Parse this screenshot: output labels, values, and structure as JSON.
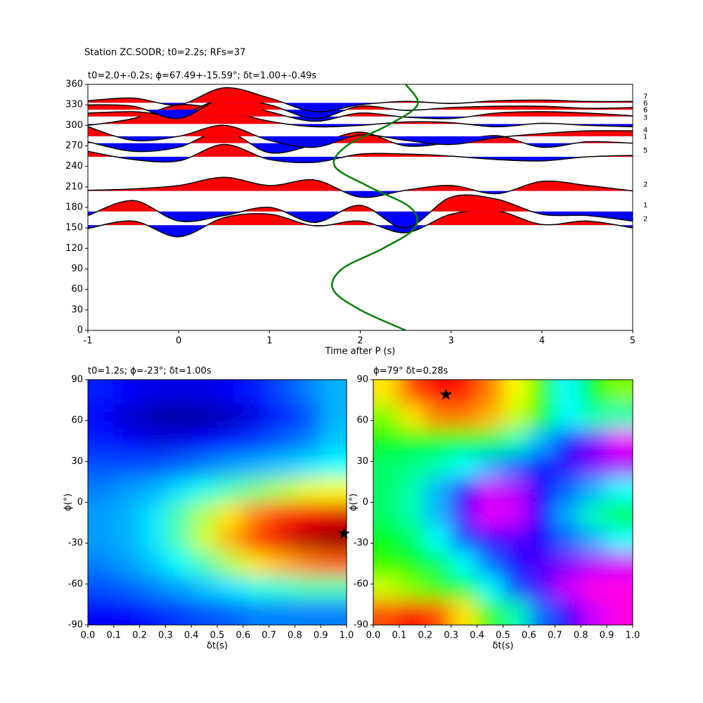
{
  "title": "Station ZC.SODR; t0=2.2s; RFs=37",
  "chart_data": [
    {
      "type": "wiggle",
      "title": "t0=2.0+-0.2s; ϕ=67.49+-15.59°; δt=1.00+-0.49s",
      "xlabel": "Time after P (s)",
      "xlim": [
        -1,
        5
      ],
      "ylim": [
        0,
        360
      ],
      "xticks": [
        -1,
        0,
        1,
        2,
        3,
        4,
        5
      ],
      "yticks": [
        0,
        30,
        60,
        90,
        120,
        150,
        180,
        210,
        240,
        270,
        300,
        330,
        360
      ],
      "positive_color": "#ff0000",
      "negative_color": "#0000ff",
      "t": [
        -1,
        -0.5,
        0,
        0.5,
        1,
        1.5,
        2,
        2.5,
        3,
        3.5,
        4,
        4.5,
        5
      ],
      "traces": [
        {
          "baseline": 154,
          "label": 2,
          "values": [
            -5,
            6,
            -17,
            11,
            16,
            -1,
            6,
            -11,
            16,
            21,
            1,
            6,
            -4
          ]
        },
        {
          "baseline": 174,
          "label": 1,
          "values": [
            -6,
            16,
            -14,
            -6,
            6,
            -16,
            9,
            -24,
            21,
            18,
            -4,
            -6,
            -14
          ]
        },
        {
          "baseline": 204,
          "label": 2,
          "values": [
            1,
            3,
            8,
            20,
            8,
            16,
            -9,
            1,
            8,
            -4,
            14,
            8,
            0
          ]
        },
        {
          "baseline": 254,
          "label": 5,
          "values": [
            8,
            -4,
            -6,
            18,
            -4,
            -8,
            4,
            4,
            1,
            -4,
            -6,
            0,
            2
          ]
        },
        {
          "baseline": 274,
          "label": 1,
          "values": [
            2,
            -12,
            -6,
            18,
            -14,
            -2,
            16,
            -4,
            1,
            11,
            -6,
            2,
            0
          ]
        },
        {
          "baseline": 284,
          "label": 4,
          "values": [
            14,
            -6,
            0,
            16,
            -6,
            -16,
            2,
            -6,
            -12,
            -2,
            4,
            8,
            8
          ]
        },
        {
          "baseline": 302,
          "label": 3,
          "values": [
            -2,
            8,
            28,
            20,
            4,
            -4,
            -2,
            3,
            2,
            -4,
            1,
            -2,
            -4
          ]
        },
        {
          "baseline": 313,
          "label": 6,
          "values": [
            5,
            7,
            3,
            25,
            7,
            -7,
            5,
            -1,
            -3,
            5,
            7,
            5,
            1
          ]
        },
        {
          "baseline": 323,
          "label": 6,
          "values": [
            7,
            5,
            -13,
            17,
            7,
            -13,
            5,
            -1,
            3,
            5,
            5,
            2,
            3
          ]
        },
        {
          "baseline": 333,
          "label": 7,
          "values": [
            3,
            7,
            -3,
            22,
            7,
            -13,
            -3,
            2,
            -1,
            3,
            4,
            2,
            2
          ]
        }
      ],
      "curve": {
        "color": "#008000",
        "baz": [
          0,
          30,
          60,
          90,
          120,
          150,
          180,
          210,
          240,
          270,
          300,
          330,
          360
        ],
        "time": [
          2.5,
          2.0,
          1.7,
          1.8,
          2.25,
          2.6,
          2.55,
          2.1,
          1.72,
          1.85,
          2.3,
          2.63,
          2.5
        ]
      }
    },
    {
      "type": "heatmap",
      "colormap": "jet",
      "title": "t0=1.2s; ϕ=-23°; δt=1.00s",
      "xlabel": "δt(s)",
      "ylabel": "ϕ(°)",
      "xlim": [
        0,
        1
      ],
      "ylim": [
        -90,
        90
      ],
      "xticks": [
        {
          "value": 0,
          "label": "0.0"
        },
        0.1,
        0.2,
        0.3,
        0.4,
        0.5,
        0.6,
        0.7,
        0.8,
        0.9,
        {
          "value": 1,
          "label": "1.0"
        }
      ],
      "yticks": [
        -90,
        -60,
        -30,
        0,
        30,
        60,
        90
      ],
      "dt": [
        0.05,
        0.15,
        0.25,
        0.35,
        0.45,
        0.55,
        0.65,
        0.75,
        0.85,
        0.95
      ],
      "phi": [
        81,
        63,
        45,
        27,
        9,
        -9,
        -27,
        -45,
        -63,
        -81
      ],
      "values": [
        [
          0.15,
          0.12,
          0.1,
          0.1,
          0.1,
          0.12,
          0.15,
          0.2,
          0.25,
          0.3
        ],
        [
          0.12,
          0.08,
          0.05,
          0.03,
          0.04,
          0.06,
          0.1,
          0.15,
          0.2,
          0.3
        ],
        [
          0.15,
          0.12,
          0.1,
          0.1,
          0.12,
          0.15,
          0.18,
          0.22,
          0.25,
          0.32
        ],
        [
          0.2,
          0.2,
          0.2,
          0.22,
          0.25,
          0.28,
          0.3,
          0.32,
          0.35,
          0.38
        ],
        [
          0.25,
          0.28,
          0.3,
          0.35,
          0.4,
          0.45,
          0.5,
          0.55,
          0.6,
          0.62
        ],
        [
          0.28,
          0.3,
          0.35,
          0.45,
          0.55,
          0.65,
          0.75,
          0.82,
          0.88,
          0.9
        ],
        [
          0.28,
          0.3,
          0.35,
          0.45,
          0.58,
          0.7,
          0.82,
          0.9,
          0.95,
          0.98
        ],
        [
          0.25,
          0.28,
          0.32,
          0.38,
          0.45,
          0.55,
          0.65,
          0.7,
          0.75,
          0.78
        ],
        [
          0.2,
          0.22,
          0.25,
          0.28,
          0.32,
          0.35,
          0.4,
          0.42,
          0.45,
          0.45
        ],
        [
          0.12,
          0.12,
          0.15,
          0.18,
          0.2,
          0.22,
          0.25,
          0.25,
          0.25,
          0.25
        ]
      ],
      "star": {
        "dt": 0.99,
        "phi": -23
      }
    },
    {
      "type": "heatmap",
      "colormap": "hsv",
      "title": "ϕ=79° δt=0.28s",
      "xlabel": "δt(s)",
      "ylabel": "ϕ(°)",
      "xlim": [
        0,
        1
      ],
      "ylim": [
        -90,
        90
      ],
      "xticks": [
        {
          "value": 0,
          "label": "0.0"
        },
        0.1,
        0.2,
        0.3,
        0.4,
        0.5,
        0.6,
        0.7,
        0.8,
        0.9,
        {
          "value": 1,
          "label": "1.0"
        }
      ],
      "yticks": [
        -90,
        -60,
        -30,
        0,
        30,
        60,
        90
      ],
      "dt": [
        0.05,
        0.15,
        0.25,
        0.35,
        0.45,
        0.55,
        0.65,
        0.75,
        0.85,
        0.95
      ],
      "phi": [
        81,
        63,
        45,
        27,
        9,
        -9,
        -27,
        -45,
        -63,
        -81
      ],
      "values": [
        [
          0.15,
          0.05,
          0.0,
          0.02,
          0.08,
          0.17,
          0.3,
          0.5,
          0.35,
          0.25
        ],
        [
          0.25,
          0.15,
          0.08,
          0.08,
          0.12,
          0.2,
          0.35,
          0.5,
          0.45,
          0.45
        ],
        [
          0.35,
          0.35,
          0.35,
          0.35,
          0.38,
          0.45,
          0.55,
          0.65,
          0.75,
          0.82
        ],
        [
          0.4,
          0.42,
          0.45,
          0.5,
          0.55,
          0.6,
          0.65,
          0.7,
          0.75,
          0.78
        ],
        [
          0.4,
          0.45,
          0.55,
          0.7,
          0.8,
          0.78,
          0.68,
          0.6,
          0.55,
          0.5
        ],
        [
          0.4,
          0.45,
          0.55,
          0.72,
          0.82,
          0.8,
          0.68,
          0.55,
          0.45,
          0.38
        ],
        [
          0.35,
          0.4,
          0.5,
          0.62,
          0.7,
          0.72,
          0.68,
          0.6,
          0.55,
          0.5
        ],
        [
          0.3,
          0.33,
          0.4,
          0.5,
          0.6,
          0.68,
          0.72,
          0.75,
          0.78,
          0.8
        ],
        [
          0.2,
          0.25,
          0.3,
          0.38,
          0.5,
          0.62,
          0.72,
          0.8,
          0.85,
          0.85
        ],
        [
          0.05,
          0.0,
          0.05,
          0.15,
          0.3,
          0.45,
          0.6,
          0.7,
          0.8,
          0.85
        ]
      ],
      "star": {
        "dt": 0.28,
        "phi": 79
      }
    }
  ]
}
